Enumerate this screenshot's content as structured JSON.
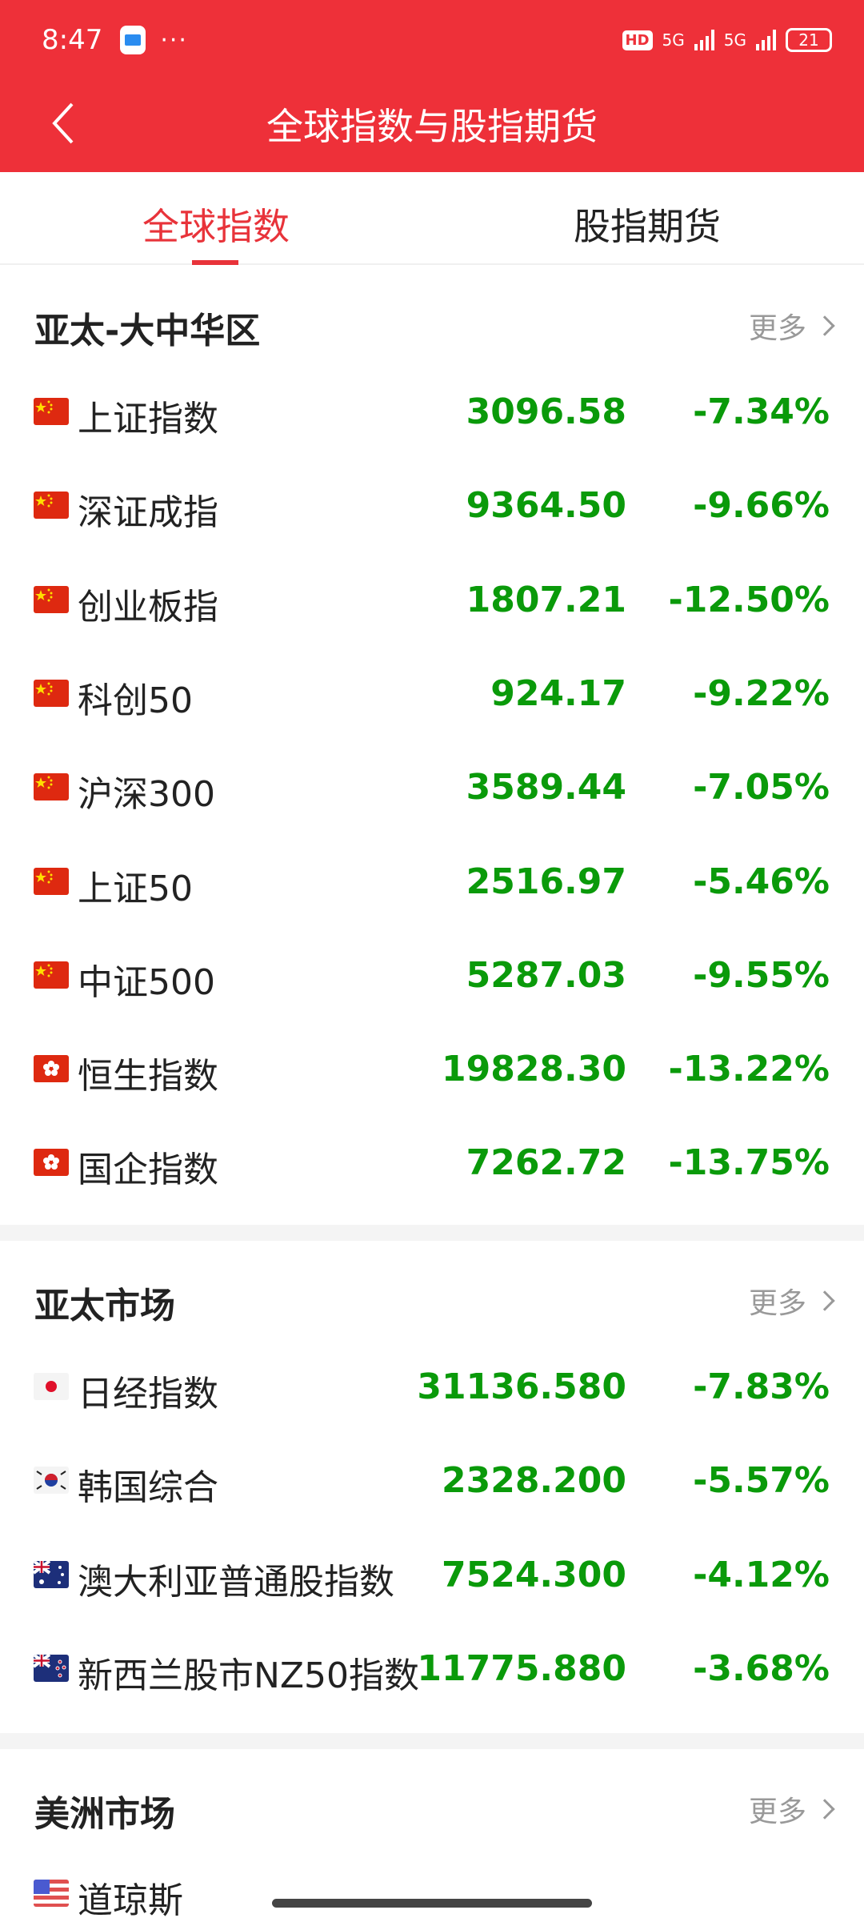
{
  "status": {
    "time": "8:47",
    "hd": "HD",
    "network1": "5G",
    "network2": "5G",
    "battery": "21"
  },
  "header": {
    "title": "全球指数与股指期货"
  },
  "tabs": [
    {
      "label": "全球指数",
      "active": true
    },
    {
      "label": "股指期货",
      "active": false
    }
  ],
  "colors": {
    "brand": "#ee3039",
    "down": "#0a9a0a"
  },
  "sections": [
    {
      "title": "亚太-大中华区",
      "more": "更多",
      "rows": [
        {
          "flag": "cn",
          "name": "上证指数",
          "value": "3096.58",
          "change": "-7.34%"
        },
        {
          "flag": "cn",
          "name": "深证成指",
          "value": "9364.50",
          "change": "-9.66%"
        },
        {
          "flag": "cn",
          "name": "创业板指",
          "value": "1807.21",
          "change": "-12.50%"
        },
        {
          "flag": "cn",
          "name": "科创50",
          "value": "924.17",
          "change": "-9.22%"
        },
        {
          "flag": "cn",
          "name": "沪深300",
          "value": "3589.44",
          "change": "-7.05%"
        },
        {
          "flag": "cn",
          "name": "上证50",
          "value": "2516.97",
          "change": "-5.46%"
        },
        {
          "flag": "cn",
          "name": "中证500",
          "value": "5287.03",
          "change": "-9.55%"
        },
        {
          "flag": "hk",
          "name": "恒生指数",
          "value": "19828.30",
          "change": "-13.22%"
        },
        {
          "flag": "hk",
          "name": "国企指数",
          "value": "7262.72",
          "change": "-13.75%"
        }
      ]
    },
    {
      "title": "亚太市场",
      "more": "更多",
      "rows": [
        {
          "flag": "jp",
          "name": "日经指数",
          "value": "31136.580",
          "change": "-7.83%"
        },
        {
          "flag": "kr",
          "name": "韩国综合",
          "value": "2328.200",
          "change": "-5.57%"
        },
        {
          "flag": "au",
          "name": "澳大利亚普通股指数",
          "value": "7524.300",
          "change": "-4.12%"
        },
        {
          "flag": "nz",
          "name": "新西兰股市NZ50指数",
          "value": "11775.880",
          "change": "-3.68%"
        }
      ]
    },
    {
      "title": "美洲市场",
      "more": "更多",
      "rows": [
        {
          "flag": "us",
          "name": "道琼斯"
        }
      ]
    }
  ]
}
